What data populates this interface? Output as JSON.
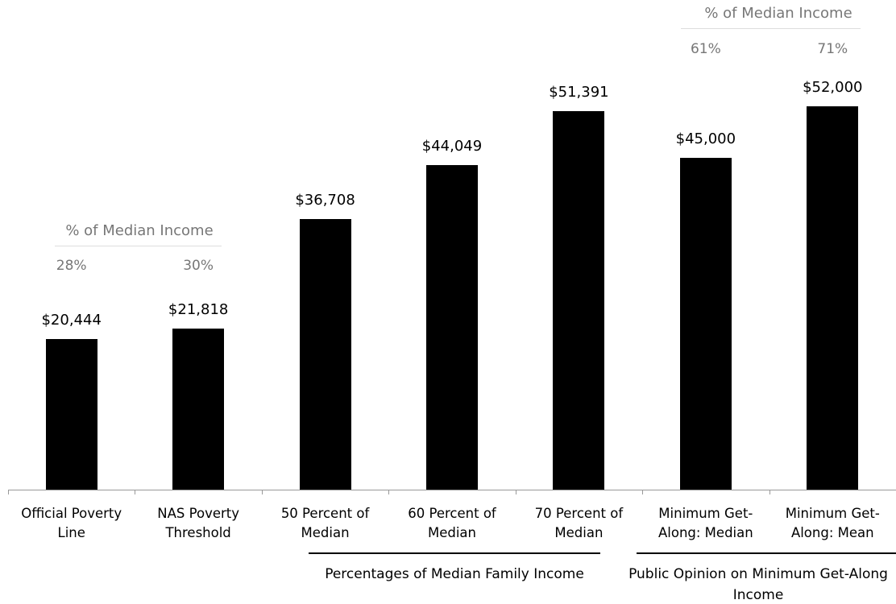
{
  "chart_data": {
    "type": "bar",
    "categories": [
      "Official Poverty Line",
      "NAS Poverty Threshold",
      "50 Percent of Median",
      "60 Percent of Median",
      "70 Percent of Median",
      "Minimum Get-Along: Median",
      "Minimum Get-Along: Mean"
    ],
    "values": [
      20444,
      21818,
      36708,
      44049,
      51391,
      45000,
      52000
    ],
    "value_labels": [
      "$20,444",
      "$21,818",
      "$36,708",
      "$44,049",
      "$51,391",
      "$45,000",
      "$52,000"
    ],
    "color": "#000000",
    "ylim": [
      0,
      60000
    ],
    "median_share": {
      "title": "% of Median Income",
      "values": [
        28,
        30,
        null,
        null,
        null,
        61,
        71
      ],
      "value_labels": [
        "28%",
        "30%",
        null,
        null,
        null,
        "61%",
        "71%"
      ]
    },
    "group_labels": [
      "Percentages of Median Family Income",
      "Public Opinion on Minimum Get-Along Income"
    ]
  }
}
